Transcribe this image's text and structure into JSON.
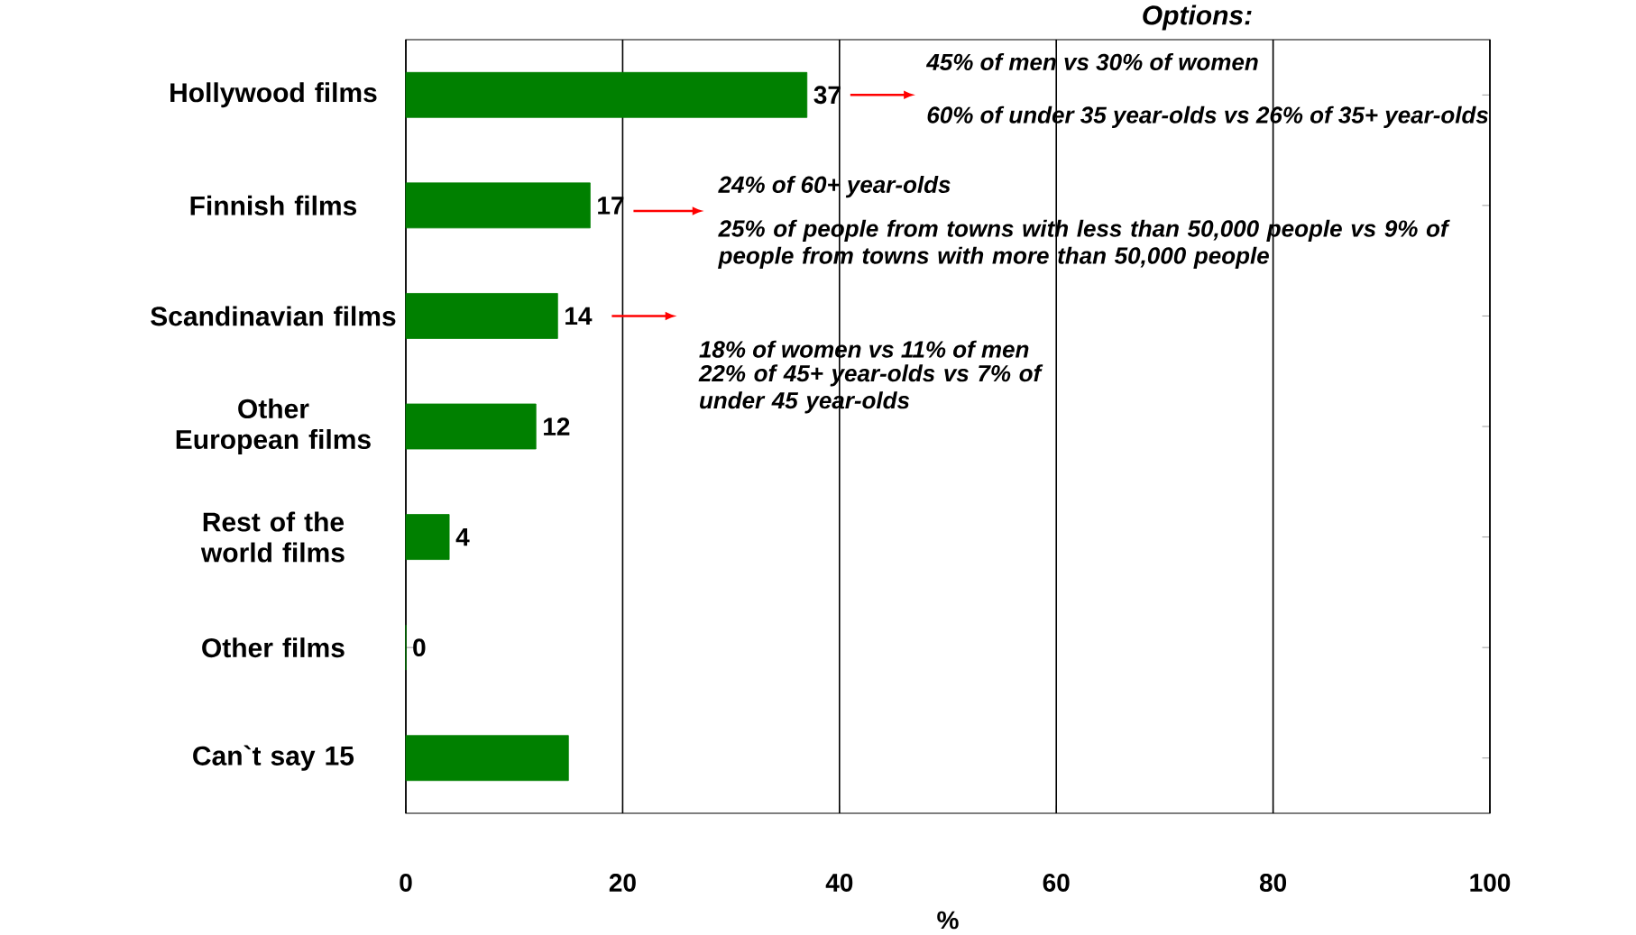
{
  "chart_data": {
    "type": "bar",
    "orientation": "horizontal",
    "xlabel": "%",
    "categories": [
      "Hollywood films",
      "Finnish films",
      "Scandinavian films",
      "Other European films",
      "Rest of the world films",
      "Other films",
      "Can`t say  15"
    ],
    "values": [
      37,
      17,
      14,
      12,
      4,
      0,
      15
    ],
    "value_labels": [
      "37",
      "17",
      "14",
      "12",
      "4",
      "0",
      null
    ],
    "color": "#008000",
    "xlim": [
      0,
      100
    ],
    "xticks": [
      0,
      20,
      40,
      60,
      80,
      100
    ],
    "grid": "x",
    "annotations": [
      "Options:",
      "45% of men vs 30% of women",
      "60% of under 35 year-olds vs 26% of 35+ year-olds",
      "24% of 60+ year-olds",
      "25% of people from towns with less than 50,000 people vs 9% of people from towns with more than 50,000 people",
      "18% of women vs 11% of men",
      "22% of 45+ year-olds vs 7% of under 45 year-olds"
    ]
  }
}
